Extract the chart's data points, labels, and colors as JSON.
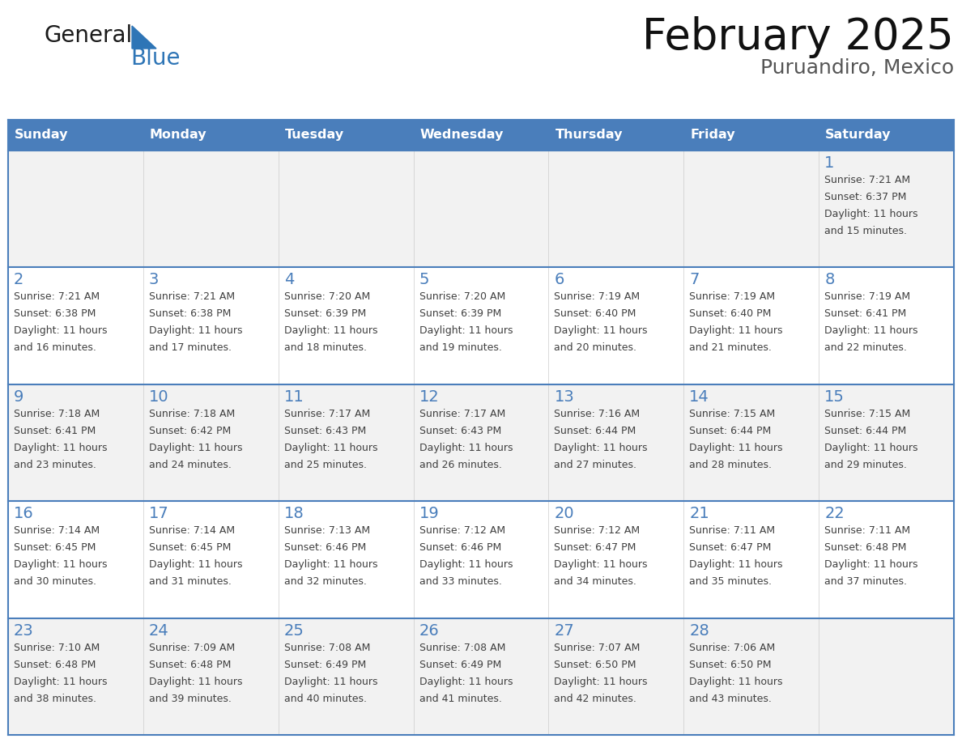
{
  "title": "February 2025",
  "subtitle": "Puruandiro, Mexico",
  "days_of_week": [
    "Sunday",
    "Monday",
    "Tuesday",
    "Wednesday",
    "Thursday",
    "Friday",
    "Saturday"
  ],
  "header_bg": "#4A7EBB",
  "header_text": "#FFFFFF",
  "cell_bg_odd": "#F2F2F2",
  "cell_bg_even": "#FFFFFF",
  "border_color": "#4A7EBB",
  "day_number_color": "#4A7EBB",
  "text_color": "#404040",
  "logo_general_color": "#1A1A1A",
  "logo_blue_color": "#2E75B6",
  "calendar_data": {
    "1": {
      "sunrise": "7:21 AM",
      "sunset": "6:37 PM",
      "daylight_hours": 11,
      "daylight_minutes": 15
    },
    "2": {
      "sunrise": "7:21 AM",
      "sunset": "6:38 PM",
      "daylight_hours": 11,
      "daylight_minutes": 16
    },
    "3": {
      "sunrise": "7:21 AM",
      "sunset": "6:38 PM",
      "daylight_hours": 11,
      "daylight_minutes": 17
    },
    "4": {
      "sunrise": "7:20 AM",
      "sunset": "6:39 PM",
      "daylight_hours": 11,
      "daylight_minutes": 18
    },
    "5": {
      "sunrise": "7:20 AM",
      "sunset": "6:39 PM",
      "daylight_hours": 11,
      "daylight_minutes": 19
    },
    "6": {
      "sunrise": "7:19 AM",
      "sunset": "6:40 PM",
      "daylight_hours": 11,
      "daylight_minutes": 20
    },
    "7": {
      "sunrise": "7:19 AM",
      "sunset": "6:40 PM",
      "daylight_hours": 11,
      "daylight_minutes": 21
    },
    "8": {
      "sunrise": "7:19 AM",
      "sunset": "6:41 PM",
      "daylight_hours": 11,
      "daylight_minutes": 22
    },
    "9": {
      "sunrise": "7:18 AM",
      "sunset": "6:41 PM",
      "daylight_hours": 11,
      "daylight_minutes": 23
    },
    "10": {
      "sunrise": "7:18 AM",
      "sunset": "6:42 PM",
      "daylight_hours": 11,
      "daylight_minutes": 24
    },
    "11": {
      "sunrise": "7:17 AM",
      "sunset": "6:43 PM",
      "daylight_hours": 11,
      "daylight_minutes": 25
    },
    "12": {
      "sunrise": "7:17 AM",
      "sunset": "6:43 PM",
      "daylight_hours": 11,
      "daylight_minutes": 26
    },
    "13": {
      "sunrise": "7:16 AM",
      "sunset": "6:44 PM",
      "daylight_hours": 11,
      "daylight_minutes": 27
    },
    "14": {
      "sunrise": "7:15 AM",
      "sunset": "6:44 PM",
      "daylight_hours": 11,
      "daylight_minutes": 28
    },
    "15": {
      "sunrise": "7:15 AM",
      "sunset": "6:44 PM",
      "daylight_hours": 11,
      "daylight_minutes": 29
    },
    "16": {
      "sunrise": "7:14 AM",
      "sunset": "6:45 PM",
      "daylight_hours": 11,
      "daylight_minutes": 30
    },
    "17": {
      "sunrise": "7:14 AM",
      "sunset": "6:45 PM",
      "daylight_hours": 11,
      "daylight_minutes": 31
    },
    "18": {
      "sunrise": "7:13 AM",
      "sunset": "6:46 PM",
      "daylight_hours": 11,
      "daylight_minutes": 32
    },
    "19": {
      "sunrise": "7:12 AM",
      "sunset": "6:46 PM",
      "daylight_hours": 11,
      "daylight_minutes": 33
    },
    "20": {
      "sunrise": "7:12 AM",
      "sunset": "6:47 PM",
      "daylight_hours": 11,
      "daylight_minutes": 34
    },
    "21": {
      "sunrise": "7:11 AM",
      "sunset": "6:47 PM",
      "daylight_hours": 11,
      "daylight_minutes": 35
    },
    "22": {
      "sunrise": "7:11 AM",
      "sunset": "6:48 PM",
      "daylight_hours": 11,
      "daylight_minutes": 37
    },
    "23": {
      "sunrise": "7:10 AM",
      "sunset": "6:48 PM",
      "daylight_hours": 11,
      "daylight_minutes": 38
    },
    "24": {
      "sunrise": "7:09 AM",
      "sunset": "6:48 PM",
      "daylight_hours": 11,
      "daylight_minutes": 39
    },
    "25": {
      "sunrise": "7:08 AM",
      "sunset": "6:49 PM",
      "daylight_hours": 11,
      "daylight_minutes": 40
    },
    "26": {
      "sunrise": "7:08 AM",
      "sunset": "6:49 PM",
      "daylight_hours": 11,
      "daylight_minutes": 41
    },
    "27": {
      "sunrise": "7:07 AM",
      "sunset": "6:50 PM",
      "daylight_hours": 11,
      "daylight_minutes": 42
    },
    "28": {
      "sunrise": "7:06 AM",
      "sunset": "6:50 PM",
      "daylight_hours": 11,
      "daylight_minutes": 43
    }
  },
  "week_layout": [
    [
      null,
      null,
      null,
      null,
      null,
      null,
      1
    ],
    [
      2,
      3,
      4,
      5,
      6,
      7,
      8
    ],
    [
      9,
      10,
      11,
      12,
      13,
      14,
      15
    ],
    [
      16,
      17,
      18,
      19,
      20,
      21,
      22
    ],
    [
      23,
      24,
      25,
      26,
      27,
      28,
      null
    ]
  ]
}
